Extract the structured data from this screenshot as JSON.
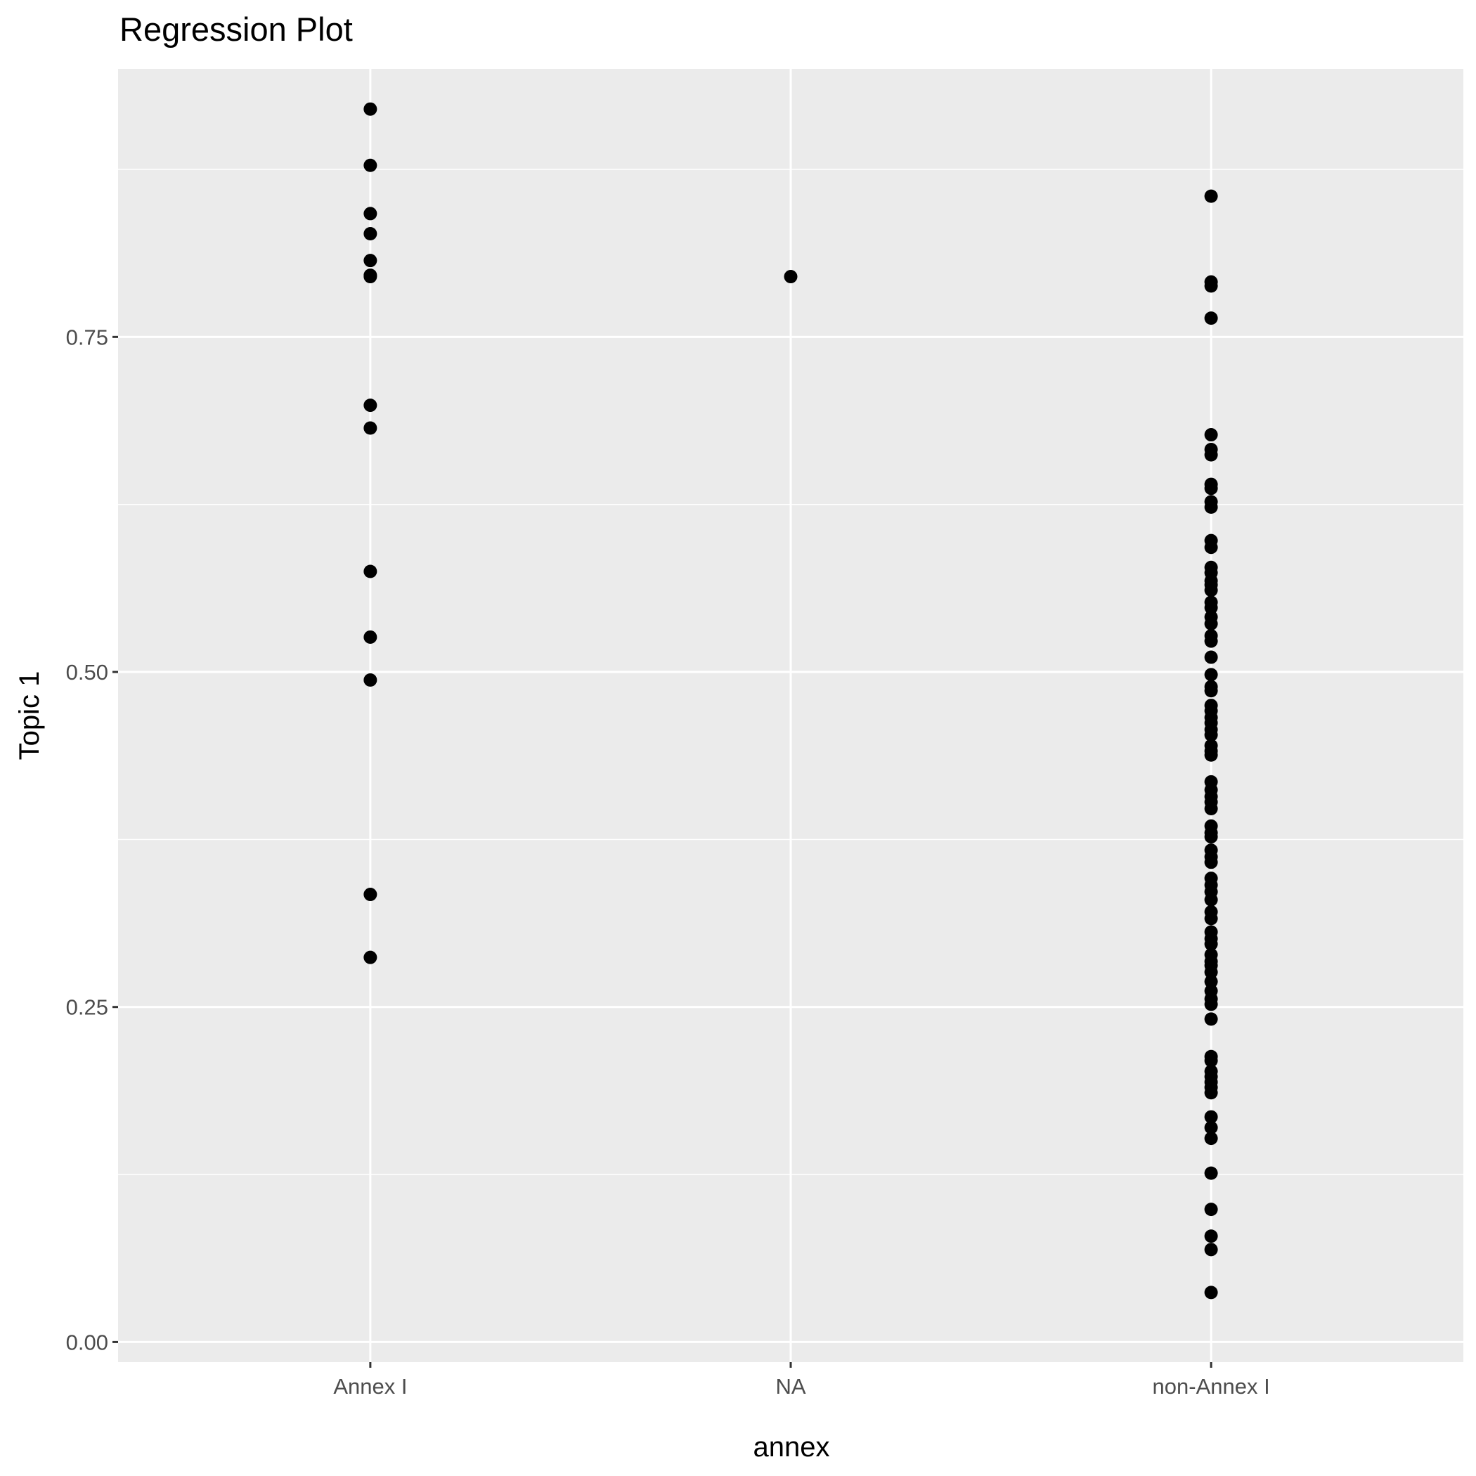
{
  "chart_data": {
    "type": "scatter",
    "title": "Regression Plot",
    "xlabel": "annex",
    "ylabel": "Topic 1",
    "categories": [
      "Annex I",
      "NA",
      "non-Annex I"
    ],
    "ylim": [
      -0.015,
      0.95
    ],
    "yticks": [
      "0.00",
      "0.25",
      "0.50",
      "0.75"
    ],
    "grid": true,
    "panel_background": "#EBEBEB",
    "grid_color": "#FFFFFF",
    "point_color": "#000000",
    "series": [
      {
        "values": {
          "Annex I": [
            0.92,
            0.878,
            0.842,
            0.827,
            0.807,
            0.796,
            0.795,
            0.699,
            0.682,
            0.575,
            0.526,
            0.494,
            0.334,
            0.287
          ],
          "NA": [
            0.795
          ],
          "non-Annex I": [
            0.855,
            0.791,
            0.788,
            0.764,
            0.677,
            0.666,
            0.662,
            0.64,
            0.637,
            0.627,
            0.623,
            0.598,
            0.593,
            0.578,
            0.574,
            0.568,
            0.565,
            0.561,
            0.552,
            0.548,
            0.541,
            0.536,
            0.527,
            0.523,
            0.511,
            0.498,
            0.489,
            0.486,
            0.475,
            0.471,
            0.466,
            0.462,
            0.457,
            0.453,
            0.445,
            0.441,
            0.438,
            0.418,
            0.412,
            0.407,
            0.403,
            0.398,
            0.385,
            0.38,
            0.377,
            0.367,
            0.362,
            0.358,
            0.346,
            0.341,
            0.336,
            0.33,
            0.321,
            0.316,
            0.306,
            0.301,
            0.297,
            0.289,
            0.284,
            0.281,
            0.276,
            0.269,
            0.262,
            0.256,
            0.252,
            0.241,
            0.213,
            0.21,
            0.202,
            0.198,
            0.194,
            0.19,
            0.186,
            0.168,
            0.16,
            0.152,
            0.126,
            0.099,
            0.079,
            0.069,
            0.037
          ]
        }
      }
    ]
  }
}
